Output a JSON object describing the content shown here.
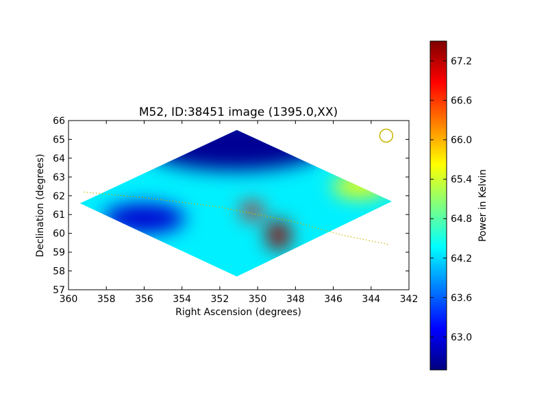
{
  "chart_data": {
    "type": "heatmap",
    "title": "M52, ID:38451 image (1395.0,XX)",
    "xlabel": "Right Ascension (degrees)",
    "ylabel": "Declination (degrees)",
    "xlim": [
      360,
      342
    ],
    "ylim": [
      57,
      66
    ],
    "x_ticks": [
      "360",
      "358",
      "356",
      "354",
      "352",
      "350",
      "348",
      "346",
      "344",
      "342"
    ],
    "y_ticks": [
      "57",
      "58",
      "59",
      "60",
      "61",
      "62",
      "63",
      "64",
      "65",
      "66"
    ],
    "colorbar": {
      "label": "Power in Kelvin",
      "range": [
        62.5,
        67.5
      ],
      "ticks": [
        "63.0",
        "63.6",
        "64.2",
        "64.8",
        "65.4",
        "66.0",
        "66.6",
        "67.2"
      ],
      "colormap": "jet"
    },
    "sky_footprint": [
      {
        "ra": 359.4,
        "dec": 61.6
      },
      {
        "ra": 351.1,
        "dec": 65.5
      },
      {
        "ra": 342.9,
        "dec": 61.7
      },
      {
        "ra": 351.1,
        "dec": 57.7
      }
    ],
    "features": [
      {
        "ra": 351.2,
        "dec": 64.8,
        "value": 62.6
      },
      {
        "ra": 356.0,
        "dec": 60.8,
        "value": 62.9
      },
      {
        "ra": 348.9,
        "dec": 59.9,
        "value": 67.4
      },
      {
        "ra": 350.3,
        "dec": 61.2,
        "value": 67.0
      },
      {
        "ra": 344.6,
        "dec": 62.5,
        "value": 65.6
      }
    ],
    "galactic_plane": [
      {
        "ra": 359.2,
        "dec": 62.2
      },
      {
        "ra": 356.0,
        "dec": 61.9
      },
      {
        "ra": 352.0,
        "dec": 61.4
      },
      {
        "ra": 348.0,
        "dec": 60.6
      },
      {
        "ra": 345.5,
        "dec": 59.9
      },
      {
        "ra": 343.0,
        "dec": 59.4
      }
    ],
    "beam_marker": {
      "ra": 343.2,
      "dec": 65.2
    },
    "colors": {
      "overlay": "#c8b400"
    }
  }
}
